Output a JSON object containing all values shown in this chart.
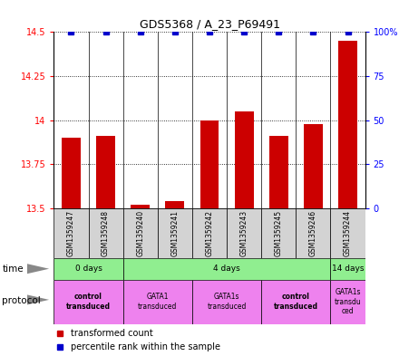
{
  "title": "GDS5368 / A_23_P69491",
  "samples": [
    "GSM1359247",
    "GSM1359248",
    "GSM1359240",
    "GSM1359241",
    "GSM1359242",
    "GSM1359243",
    "GSM1359245",
    "GSM1359246",
    "GSM1359244"
  ],
  "bar_values": [
    13.9,
    13.91,
    13.52,
    13.54,
    14.0,
    14.05,
    13.91,
    13.98,
    14.45
  ],
  "blue_dot_values": [
    100,
    100,
    100,
    100,
    100,
    100,
    100,
    100,
    100
  ],
  "bar_color": "#cc0000",
  "dot_color": "#0000cc",
  "ymin": 13.5,
  "ymax": 14.5,
  "y_ticks": [
    13.5,
    13.75,
    14.0,
    14.25,
    14.5
  ],
  "y_ticks_labels": [
    "13.5",
    "13.75",
    "14",
    "14.25",
    "14.5"
  ],
  "right_y_ticks": [
    0,
    25,
    50,
    75,
    100
  ],
  "right_y_labels": [
    "0",
    "25",
    "50",
    "75",
    "100%"
  ],
  "time_info": [
    {
      "start": 0,
      "end": 2,
      "label": "0 days"
    },
    {
      "start": 2,
      "end": 8,
      "label": "4 days"
    },
    {
      "start": 8,
      "end": 9,
      "label": "14 days"
    }
  ],
  "prot_info": [
    {
      "start": 0,
      "end": 2,
      "label": "control\ntransduced",
      "bold": true
    },
    {
      "start": 2,
      "end": 4,
      "label": "GATA1\ntransduced",
      "bold": false
    },
    {
      "start": 4,
      "end": 6,
      "label": "GATA1s\ntransduced",
      "bold": false
    },
    {
      "start": 6,
      "end": 8,
      "label": "control\ntransduced",
      "bold": true
    },
    {
      "start": 8,
      "end": 9,
      "label": "GATA1s\ntransdu\nced",
      "bold": false
    }
  ],
  "legend_items": [
    {
      "color": "#cc0000",
      "label": "transformed count"
    },
    {
      "color": "#0000cc",
      "label": "percentile rank within the sample"
    }
  ],
  "sample_box_color": "#d3d3d3",
  "time_color": "#90ee90",
  "prot_color": "#ee82ee"
}
